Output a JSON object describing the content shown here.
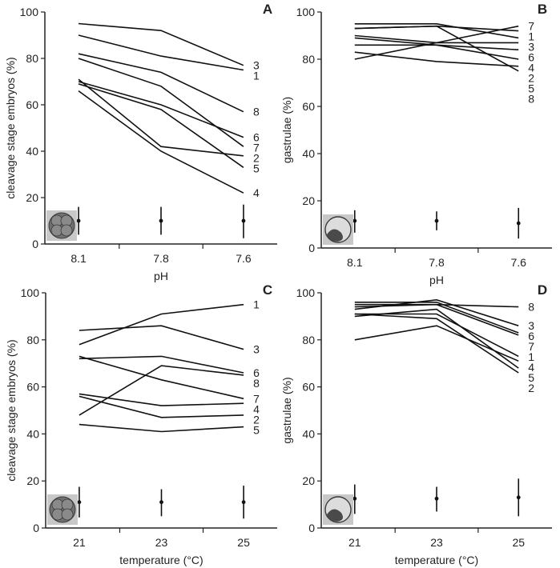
{
  "chart_data": [
    {
      "panel": "A",
      "type": "line",
      "xlabel": "pH",
      "ylabel": "cleavage stage embryos (%)",
      "categories": [
        "8.1",
        "7.8",
        "7.6"
      ],
      "ylim": [
        0,
        100
      ],
      "yticks": [
        "0",
        "20",
        "40",
        "60",
        "80",
        "100"
      ],
      "inset_icon": "cleavage-embryo-icon",
      "series": [
        {
          "name": "1",
          "values": [
            90,
            81,
            75
          ]
        },
        {
          "name": "2",
          "values": [
            71,
            42,
            38
          ]
        },
        {
          "name": "3",
          "values": [
            95,
            92,
            77
          ]
        },
        {
          "name": "4",
          "values": [
            66,
            40,
            22
          ]
        },
        {
          "name": "5",
          "values": [
            69,
            58,
            33
          ]
        },
        {
          "name": "6",
          "values": [
            70,
            60,
            46
          ]
        },
        {
          "name": "7",
          "values": [
            80,
            68,
            42
          ]
        },
        {
          "name": "8",
          "values": [
            82,
            74,
            57
          ]
        }
      ],
      "errorbars": [
        {
          "mean": 10,
          "low": 4,
          "high": 16
        },
        {
          "mean": 10,
          "low": 4,
          "high": 16
        },
        {
          "mean": 10,
          "low": 2.5,
          "high": 17
        }
      ]
    },
    {
      "panel": "B",
      "type": "line",
      "xlabel": "pH",
      "ylabel": "gastrulae (%)",
      "categories": [
        "8.1",
        "7.8",
        "7.6"
      ],
      "ylim": [
        0,
        100
      ],
      "yticks": [
        "0",
        "20",
        "40",
        "60",
        "80",
        "100"
      ],
      "inset_icon": "gastrula-embryo-icon",
      "series": [
        {
          "name": "1",
          "values": [
            93,
            94,
            92
          ]
        },
        {
          "name": "2",
          "values": [
            89,
            86,
            80
          ]
        },
        {
          "name": "3",
          "values": [
            95,
            95,
            89
          ]
        },
        {
          "name": "4",
          "values": [
            86,
            86,
            84
          ]
        },
        {
          "name": "5",
          "values": [
            83,
            79,
            77
          ]
        },
        {
          "name": "6",
          "values": [
            90,
            87,
            87
          ]
        },
        {
          "name": "7",
          "values": [
            80,
            87,
            94
          ]
        },
        {
          "name": "8",
          "values": [
            93,
            94,
            75
          ]
        }
      ],
      "errorbars": [
        {
          "mean": 11.5,
          "low": 6.5,
          "high": 16
        },
        {
          "mean": 11.5,
          "low": 7.5,
          "high": 15.5
        },
        {
          "mean": 10.5,
          "low": 4,
          "high": 17
        }
      ]
    },
    {
      "panel": "C",
      "type": "line",
      "xlabel": "temperature (°C)",
      "ylabel": "cleavage stage embryos (%)",
      "categories": [
        "21",
        "23",
        "25"
      ],
      "ylim": [
        0,
        100
      ],
      "yticks": [
        "0",
        "20",
        "40",
        "60",
        "80",
        "100"
      ],
      "inset_icon": "cleavage-embryo-icon",
      "series": [
        {
          "name": "1",
          "values": [
            78,
            91,
            95
          ]
        },
        {
          "name": "2",
          "values": [
            56,
            47,
            48
          ]
        },
        {
          "name": "3",
          "values": [
            84,
            86,
            76
          ]
        },
        {
          "name": "4",
          "values": [
            57,
            52,
            53
          ]
        },
        {
          "name": "5",
          "values": [
            44,
            41,
            43
          ]
        },
        {
          "name": "6",
          "values": [
            72,
            73,
            66
          ]
        },
        {
          "name": "7",
          "values": [
            73,
            63,
            55
          ]
        },
        {
          "name": "8",
          "values": [
            48,
            69,
            65
          ]
        }
      ],
      "errorbars": [
        {
          "mean": 11,
          "low": 4.5,
          "high": 17.5
        },
        {
          "mean": 11,
          "low": 5,
          "high": 16.5
        },
        {
          "mean": 11,
          "low": 4,
          "high": 18
        }
      ]
    },
    {
      "panel": "D",
      "type": "line",
      "xlabel": "temperature (°C)",
      "ylabel": "gastrulae (%)",
      "categories": [
        "21",
        "23",
        "25"
      ],
      "ylim": [
        0,
        100
      ],
      "yticks": [
        "0",
        "20",
        "40",
        "60",
        "80",
        "100"
      ],
      "inset_icon": "gastrula-embryo-icon",
      "series": [
        {
          "name": "1",
          "values": [
            91,
            91,
            73
          ]
        },
        {
          "name": "2",
          "values": [
            91,
            89,
            66
          ]
        },
        {
          "name": "3",
          "values": [
            93,
            97,
            86
          ]
        },
        {
          "name": "4",
          "values": [
            80,
            86,
            71
          ]
        },
        {
          "name": "5",
          "values": [
            90,
            93,
            68
          ]
        },
        {
          "name": "6",
          "values": [
            96,
            96,
            83
          ]
        },
        {
          "name": "7",
          "values": [
            94,
            95,
            82
          ]
        },
        {
          "name": "8",
          "values": [
            95,
            95,
            94
          ]
        }
      ],
      "errorbars": [
        {
          "mean": 12.5,
          "low": 6,
          "high": 18.5
        },
        {
          "mean": 12.5,
          "low": 7,
          "high": 17.5
        },
        {
          "mean": 13,
          "low": 5,
          "high": 21
        }
      ]
    }
  ],
  "colors": {
    "line": "#111111",
    "axis": "#222222",
    "inset_background": "#c8c8c8",
    "embryo_fill": "#707070"
  }
}
